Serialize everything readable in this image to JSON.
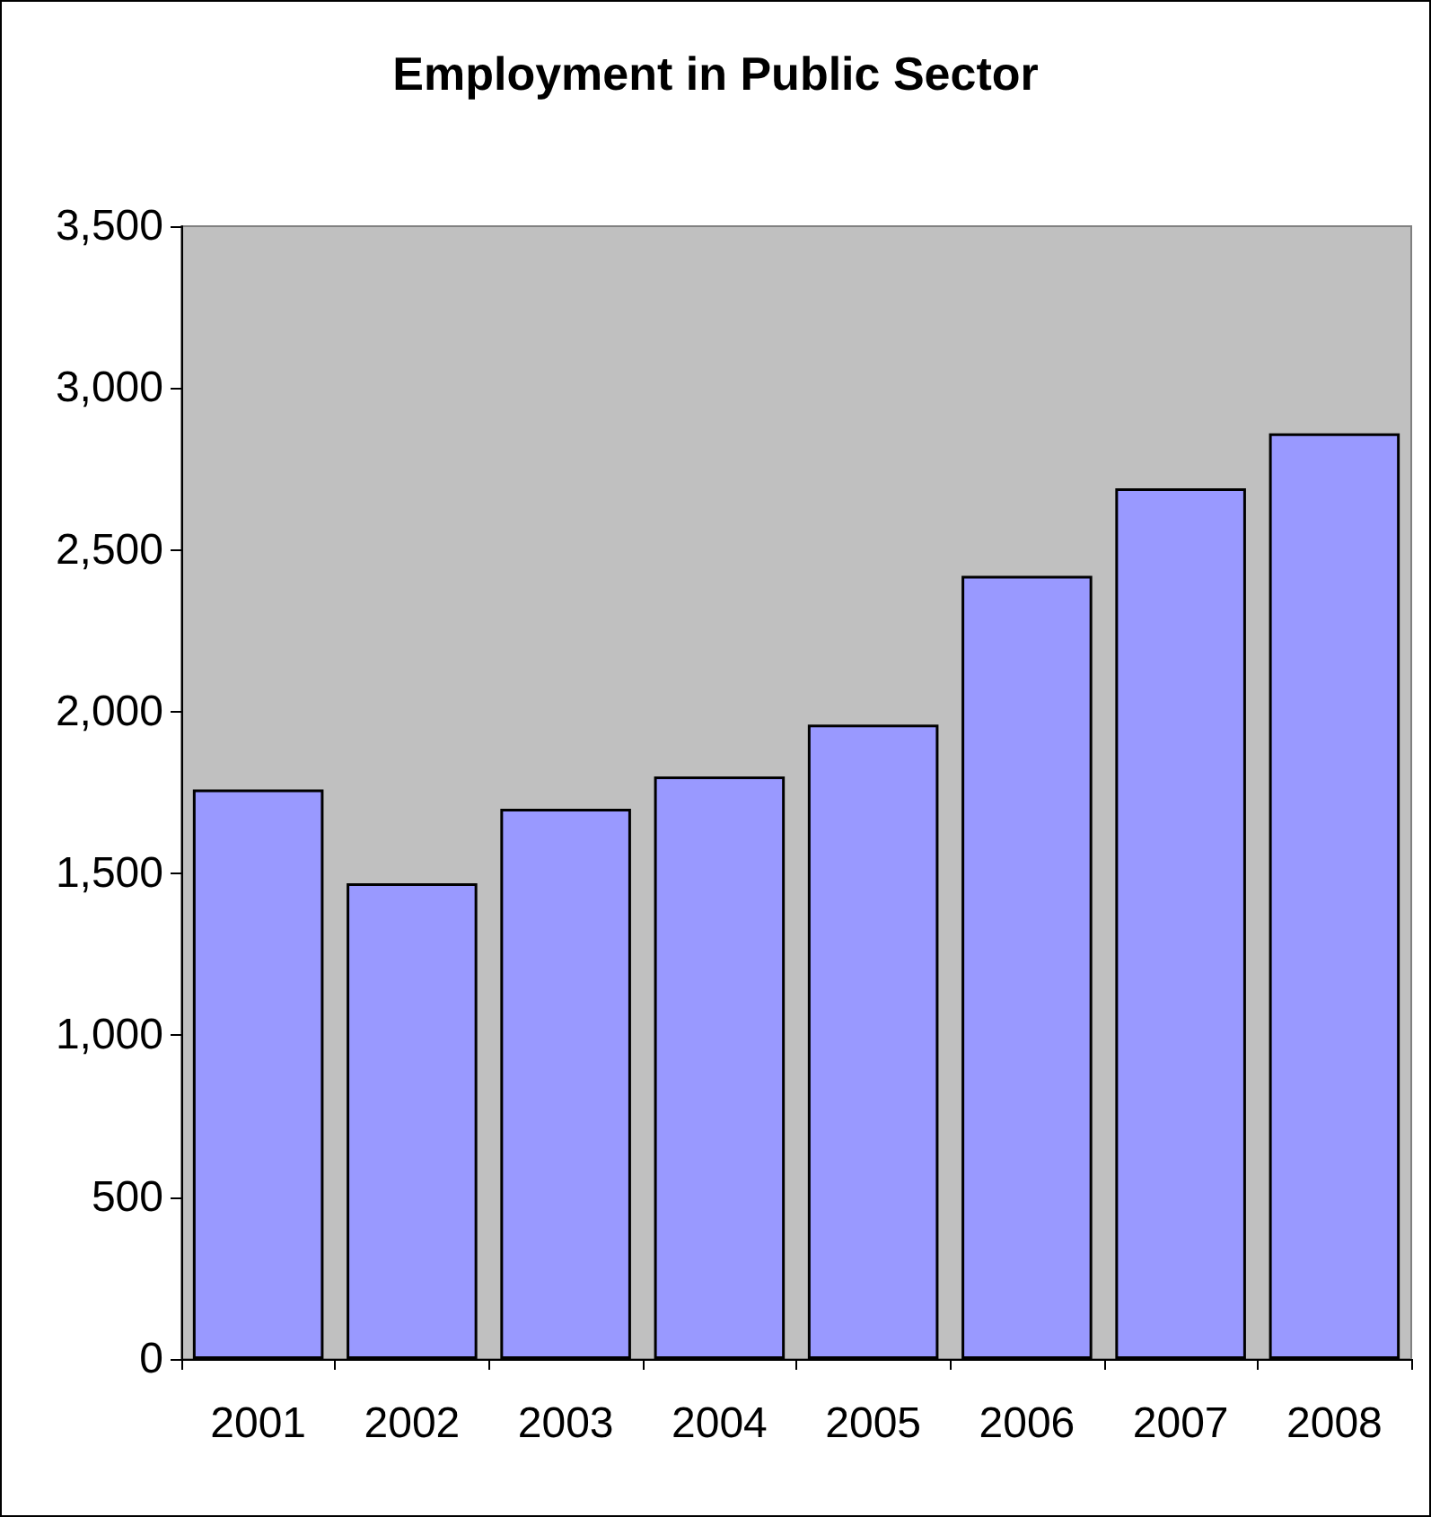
{
  "chart_data": {
    "type": "bar",
    "title": "Employment in Public Sector",
    "categories": [
      "2001",
      "2002",
      "2003",
      "2004",
      "2005",
      "2006",
      "2007",
      "2008"
    ],
    "values": [
      1760,
      1470,
      1700,
      1800,
      1960,
      2420,
      2690,
      2860
    ],
    "color": "#9999ff",
    "ylim": [
      0,
      3500
    ],
    "yticks": [
      0,
      500,
      {
        "value": 1000,
        "label": "1,000"
      },
      {
        "value": 1500,
        "label": "1,500"
      },
      {
        "value": 2000,
        "label": "2,000"
      },
      {
        "value": 2500,
        "label": "2,500"
      },
      {
        "value": 3000,
        "label": "3,000"
      },
      {
        "value": 3500,
        "label": "3,500"
      }
    ]
  }
}
